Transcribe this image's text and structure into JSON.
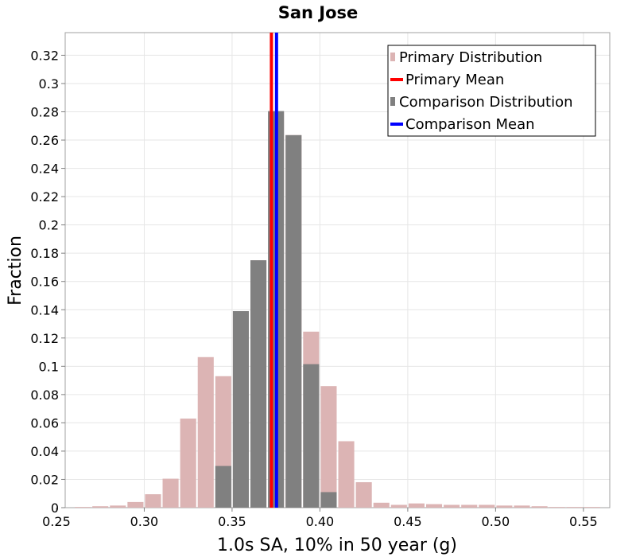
{
  "chart_data": {
    "type": "bar",
    "title": "San Jose",
    "xlabel": "1.0s SA, 10% in 50 year (g)",
    "ylabel": "Fraction",
    "xlim": [
      0.255,
      0.565
    ],
    "ylim": [
      0,
      0.336
    ],
    "grid": true,
    "bin_width": 0.01,
    "xticks": [
      "0.25",
      "0.30",
      "0.35",
      "0.40",
      "0.45",
      "0.50",
      "0.55"
    ],
    "yticks": [
      "0",
      "0.02",
      "0.04",
      "0.06",
      "0.08",
      "0.1",
      "0.12",
      "0.14",
      "0.16",
      "0.18",
      "0.2",
      "0.22",
      "0.24",
      "0.26",
      "0.28",
      "0.3",
      "0.32"
    ],
    "series": [
      {
        "name": "Primary Distribution",
        "kind": "histogram",
        "color": "#dcb4b4",
        "x": [
          0.265,
          0.275,
          0.285,
          0.295,
          0.305,
          0.315,
          0.325,
          0.335,
          0.345,
          0.355,
          0.365,
          0.375,
          0.385,
          0.395,
          0.405,
          0.415,
          0.425,
          0.435,
          0.445,
          0.455,
          0.465,
          0.475,
          0.485,
          0.495,
          0.505,
          0.515,
          0.525,
          0.535,
          0.545,
          0.555
        ],
        "values": [
          0.0005,
          0.001,
          0.0015,
          0.004,
          0.0095,
          0.0205,
          0.063,
          0.1065,
          0.093,
          0.139,
          0.175,
          0.28,
          0.2635,
          0.1245,
          0.086,
          0.047,
          0.018,
          0.0035,
          0.002,
          0.003,
          0.0025,
          0.002,
          0.002,
          0.002,
          0.0015,
          0.0015,
          0.001,
          0.0005,
          0.0005,
          0.0005
        ]
      },
      {
        "name": "Comparison Distribution",
        "kind": "histogram",
        "color": "#808080",
        "x": [
          0.345,
          0.355,
          0.365,
          0.375,
          0.385,
          0.395,
          0.405
        ],
        "values": [
          0.0295,
          0.139,
          0.175,
          0.2805,
          0.2635,
          0.1015,
          0.011
        ]
      },
      {
        "name": "Primary Mean",
        "kind": "vline",
        "color": "#ff0000",
        "x": 0.3724
      },
      {
        "name": "Comparison Mean",
        "kind": "vline",
        "color": "#0000ff",
        "x": 0.3753
      }
    ],
    "legend": {
      "position": "top-right",
      "entries": [
        "Primary Distribution",
        "Primary Mean",
        "Comparison Distribution",
        "Comparison Mean"
      ]
    }
  }
}
